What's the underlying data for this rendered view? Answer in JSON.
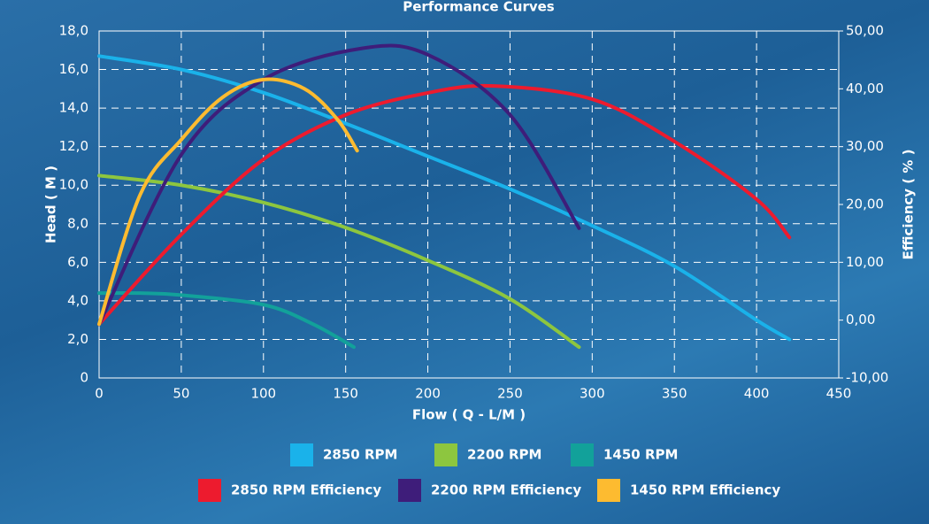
{
  "chart_data": {
    "type": "line",
    "title": "Performance Curves",
    "x_label": "Flow ( Q - L/M )",
    "y_label": "Head ( M )",
    "y2_label": "Efficiency ( % )",
    "xlim": [
      0,
      450
    ],
    "xticks": [
      0,
      50,
      100,
      150,
      200,
      250,
      300,
      350,
      400,
      450
    ],
    "ylim": [
      0,
      18
    ],
    "yticks": [
      0,
      {
        "value": 2,
        "label": "2,0"
      },
      {
        "value": 4,
        "label": "4,0"
      },
      {
        "value": 6,
        "label": "6,0"
      },
      {
        "value": 8,
        "label": "8,0"
      },
      {
        "value": 10,
        "label": "10,0"
      },
      {
        "value": 12,
        "label": "12,0"
      },
      {
        "value": 14,
        "label": "14,0"
      },
      {
        "value": 16,
        "label": "16,0"
      },
      {
        "value": 18,
        "label": "18,0"
      }
    ],
    "y2lim": [
      -10,
      50
    ],
    "y2ticks": [
      {
        "value": -10,
        "label": "-10,00"
      },
      {
        "value": 0,
        "label": "0,00"
      },
      {
        "value": 10,
        "label": "10,00"
      },
      {
        "value": 20,
        "label": "20,00"
      },
      {
        "value": 30,
        "label": "30,00"
      },
      {
        "value": 40,
        "label": "40,00"
      },
      {
        "value": 50,
        "label": "50,00"
      }
    ],
    "grid": true,
    "series": [
      {
        "name": "2850 RPM",
        "color": "#1ab2ea",
        "x": [
          0,
          50,
          100,
          150,
          200,
          250,
          300,
          350,
          400,
          420
        ],
        "values": [
          16.7,
          16.0,
          14.8,
          13.2,
          11.5,
          9.8,
          7.9,
          5.8,
          3.0,
          2.0
        ]
      },
      {
        "name": "2200 RPM",
        "color": "#8dc63f",
        "x": [
          0,
          50,
          100,
          150,
          200,
          250,
          292
        ],
        "values": [
          10.5,
          10.0,
          9.1,
          7.8,
          6.1,
          4.1,
          1.6
        ]
      },
      {
        "name": "1450 RPM",
        "color": "#12a19a",
        "x": [
          0,
          25,
          50,
          100,
          130,
          155
        ],
        "values": [
          4.4,
          4.4,
          4.3,
          3.8,
          2.8,
          1.6
        ]
      },
      {
        "name": "2850 RPM Efficiency",
        "color": "#ed1b2e",
        "axis": "y2",
        "x": [
          0,
          50,
          100,
          150,
          200,
          240,
          300,
          350,
          400,
          420
        ],
        "values": [
          -0.7,
          14.8,
          27.8,
          35.5,
          39.3,
          40.5,
          38.2,
          30.9,
          20.9,
          14.3
        ]
      },
      {
        "name": "2200 RPM Efficiency",
        "color": "#3e1d7a",
        "axis": "y2",
        "x": [
          0,
          50,
          100,
          160,
          200,
          250,
          292
        ],
        "values": [
          -0.7,
          28.6,
          41.6,
          47.0,
          45.9,
          35.5,
          15.9
        ]
      },
      {
        "name": "1450 RPM Efficiency",
        "color": "#fdbb30",
        "axis": "y2",
        "x": [
          0,
          25,
          50,
          75,
          100,
          125,
          145,
          157
        ],
        "values": [
          -0.7,
          21.7,
          31.2,
          38.5,
          41.6,
          40.0,
          34.7,
          29.3
        ]
      }
    ]
  }
}
